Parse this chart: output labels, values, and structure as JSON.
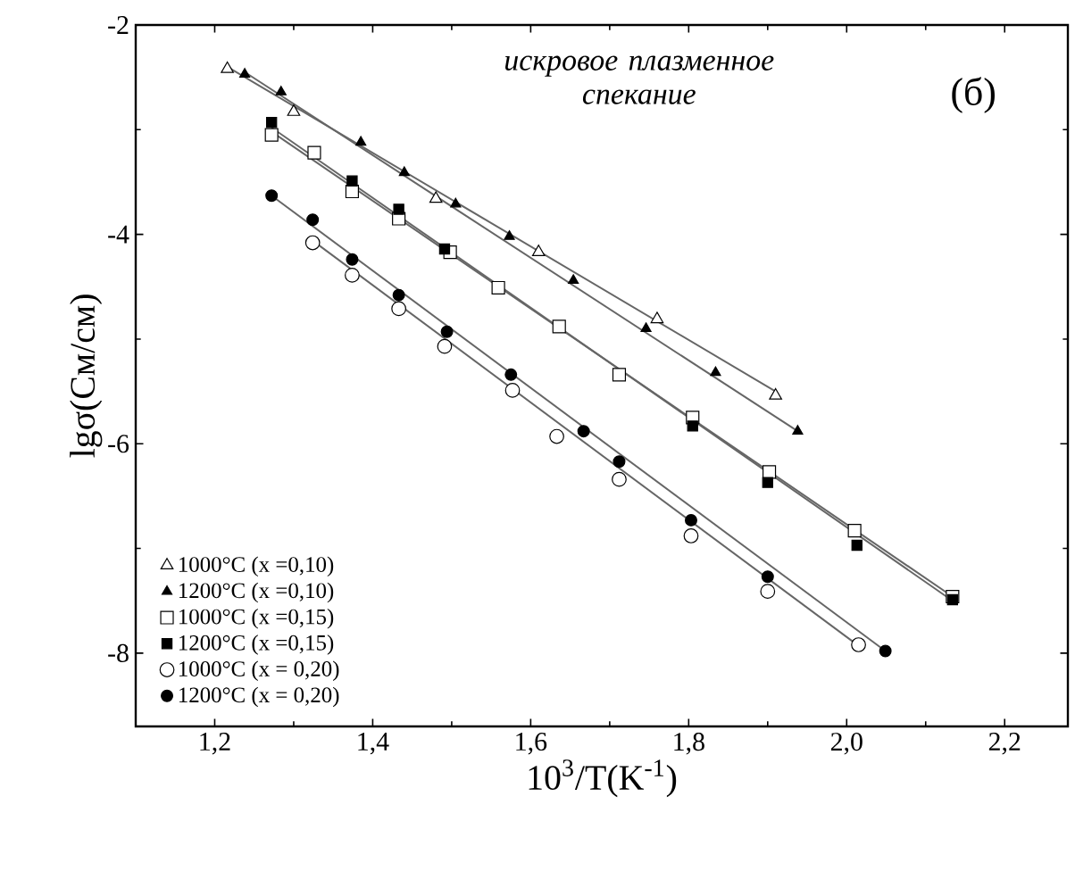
{
  "chart_data": {
    "type": "scatter",
    "xlabel": "10$^{3}$/T(K$^{-1}$)",
    "ylabel": "lgσ(См/см)",
    "annotations": [
      "искровое плазменное спекание",
      "(б)"
    ],
    "xlim": [
      1.1,
      2.28
    ],
    "ylim": [
      -8.7,
      -2
    ],
    "xticks": [
      {
        "value": 1.2,
        "label": "1,2"
      },
      {
        "value": 1.4,
        "label": "1,4"
      },
      {
        "value": 1.6,
        "label": "1,6"
      },
      {
        "value": 1.8,
        "label": "1,8"
      },
      {
        "value": 2.0,
        "label": "2,0"
      },
      {
        "value": 2.2,
        "label": "2,2"
      }
    ],
    "yticks": [
      -2,
      -4,
      -6,
      -8
    ],
    "grid": false,
    "legend": "bottom left",
    "series": [
      {
        "name": "1000°C (x =0,10)",
        "marker": "triangle",
        "color": "#ffffff",
        "x": [
          1.216,
          1.3,
          1.48,
          1.61,
          1.76,
          1.91
        ],
        "values": [
          -2.42,
          -2.83,
          -3.66,
          -4.17,
          -4.81,
          -5.54
        ]
      },
      {
        "name": "1200°C (x =0,10)",
        "marker": "triangle",
        "color": "#000000",
        "x": [
          1.238,
          1.284,
          1.385,
          1.44,
          1.505,
          1.573,
          1.654,
          1.746,
          1.834,
          1.938
        ],
        "values": [
          -2.47,
          -2.64,
          -3.12,
          -3.41,
          -3.71,
          -4.02,
          -4.44,
          -4.9,
          -5.32,
          -5.88
        ]
      },
      {
        "name": "1000°C (x =0,15)",
        "marker": "square",
        "color": "#ffffff",
        "x": [
          1.272,
          1.326,
          1.374,
          1.433,
          1.498,
          1.559,
          1.636,
          1.712,
          1.805,
          1.902,
          2.01,
          2.134
        ],
        "values": [
          -3.05,
          -3.22,
          -3.59,
          -3.85,
          -4.17,
          -4.51,
          -4.88,
          -5.34,
          -5.75,
          -6.27,
          -6.83,
          -7.46
        ]
      },
      {
        "name": "1200°C (x =0,15)",
        "marker": "square",
        "color": "#000000",
        "x": [
          1.272,
          1.374,
          1.433,
          1.491,
          1.805,
          1.9,
          2.013,
          2.134
        ],
        "values": [
          -2.93,
          -3.49,
          -3.76,
          -4.14,
          -5.83,
          -6.37,
          -6.97,
          -7.49
        ]
      },
      {
        "name": "1000°C (x = 0,20)",
        "marker": "circle",
        "color": "#ffffff",
        "x": [
          1.324,
          1.374,
          1.433,
          1.491,
          1.577,
          1.633,
          1.712,
          1.803,
          1.9,
          2.015
        ],
        "values": [
          -4.08,
          -4.39,
          -4.71,
          -5.07,
          -5.49,
          -5.93,
          -6.34,
          -6.88,
          -7.41,
          -7.92
        ]
      },
      {
        "name": "1200°C (x = 0,20)",
        "marker": "circle",
        "color": "#000000",
        "x": [
          1.272,
          1.324,
          1.374,
          1.433,
          1.494,
          1.575,
          1.667,
          1.712,
          1.803,
          1.9,
          2.049
        ],
        "values": [
          -3.63,
          -3.86,
          -4.24,
          -4.58,
          -4.93,
          -5.34,
          -5.88,
          -6.17,
          -6.73,
          -7.27,
          -7.98
        ]
      },
      {
        "type": "line",
        "marker": "none",
        "color": "#666666",
        "x": [
          1.216,
          1.91
        ],
        "values": [
          -2.4,
          -5.5
        ]
      },
      {
        "type": "line",
        "marker": "none",
        "color": "#666666",
        "x": [
          1.238,
          1.938
        ],
        "values": [
          -2.45,
          -5.88
        ]
      },
      {
        "type": "line",
        "marker": "none",
        "color": "#666666",
        "x": [
          1.272,
          2.134
        ],
        "values": [
          -3.02,
          -7.46
        ]
      },
      {
        "type": "line",
        "marker": "none",
        "color": "#666666",
        "x": [
          1.272,
          2.134
        ],
        "values": [
          -2.98,
          -7.5
        ]
      },
      {
        "type": "line",
        "marker": "none",
        "color": "#666666",
        "x": [
          1.324,
          2.015
        ],
        "values": [
          -4.06,
          -7.93
        ]
      },
      {
        "type": "line",
        "marker": "none",
        "color": "#666666",
        "x": [
          1.272,
          2.049
        ],
        "values": [
          -3.63,
          -7.98
        ]
      }
    ]
  }
}
